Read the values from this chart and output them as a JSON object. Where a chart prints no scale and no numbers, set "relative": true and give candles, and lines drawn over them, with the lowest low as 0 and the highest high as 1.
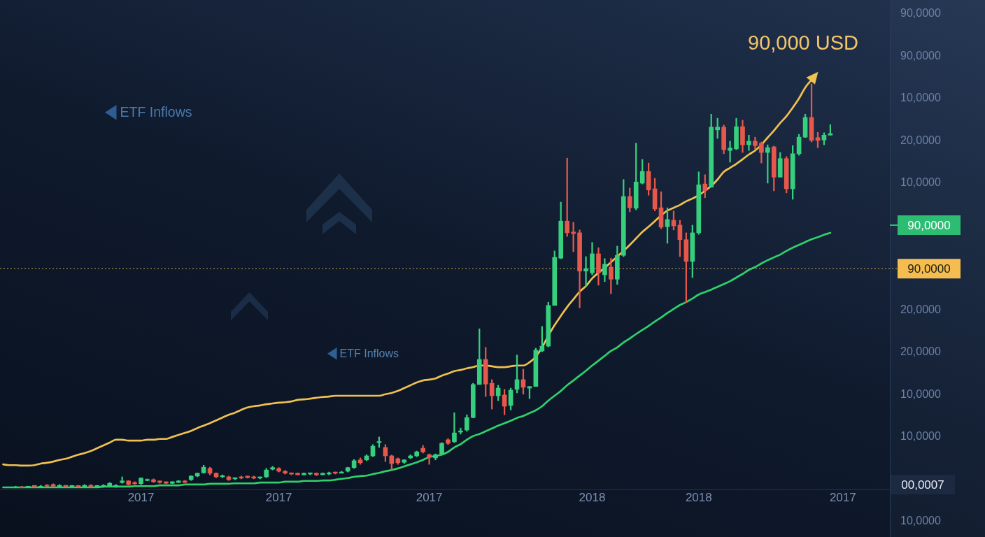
{
  "chart_data": {
    "type": "candlestick",
    "relative": true,
    "legend": false,
    "marker": "none",
    "categories": [
      null,
      null,
      null,
      null,
      null,
      null,
      null,
      null,
      null,
      null,
      null,
      null,
      null,
      null,
      null,
      null,
      null,
      null,
      null,
      null,
      null,
      null,
      "2017",
      null,
      null,
      null,
      null,
      null,
      null,
      null,
      null,
      null,
      null,
      null,
      null,
      null,
      null,
      null,
      null,
      null,
      null,
      null,
      null,
      null,
      "2017",
      null,
      null,
      null,
      null,
      null,
      null,
      null,
      null,
      null,
      null,
      null,
      null,
      null,
      null,
      null,
      null,
      null,
      null,
      null,
      null,
      null,
      null,
      null,
      "2017",
      null,
      null,
      null,
      null,
      null,
      null,
      null,
      null,
      null,
      null,
      null,
      null,
      null,
      null,
      null,
      null,
      null,
      null,
      null,
      null,
      null,
      null,
      null,
      null,
      null,
      "2018",
      null,
      null,
      null,
      null,
      null,
      null,
      null,
      null,
      null,
      null,
      null,
      null,
      null,
      null,
      null,
      null,
      "2018",
      null,
      null,
      null,
      null,
      null,
      null,
      null,
      null,
      null,
      null,
      null,
      null,
      null,
      null,
      null,
      null,
      null,
      null,
      null,
      null,
      null,
      null,
      "2017",
      null,
      null,
      null,
      null,
      null,
      null,
      null
    ],
    "ohlc": [
      null,
      null,
      [
        0,
        0.003,
        0,
        0.002
      ],
      [
        0.002,
        0.003,
        0,
        0
      ],
      [
        0,
        0.003,
        0,
        0.003
      ],
      [
        0.003,
        0.005,
        0,
        0.002
      ],
      [
        0,
        0.005,
        0,
        0.003
      ],
      [
        0.005,
        0.007,
        0.002,
        0.003
      ],
      [
        0.007,
        0.009,
        0.002,
        0.003
      ],
      [
        0.002,
        0.007,
        0,
        0.005
      ],
      [
        0.005,
        0.005,
        0,
        0.002
      ],
      [
        0.002,
        0.005,
        0,
        0.003
      ],
      [
        0.003,
        0.005,
        0,
        0.002
      ],
      [
        0.002,
        0.007,
        0,
        0.005
      ],
      [
        0.005,
        0.007,
        0,
        0.002
      ],
      [
        0.002,
        0.005,
        0,
        0.003
      ],
      [
        0.002,
        0.007,
        0,
        0.005
      ],
      [
        0.003,
        0.012,
        0.002,
        0.01
      ],
      [
        0.002,
        0.007,
        0,
        0.005
      ],
      [
        0.012,
        0.026,
        0.01,
        0.016
      ],
      [
        0.016,
        0.017,
        0.005,
        0.007
      ],
      [
        0.012,
        0.014,
        0.007,
        0.009
      ],
      [
        0.009,
        0.024,
        0.007,
        0.023
      ],
      [
        0.017,
        0.021,
        0.016,
        0.019
      ],
      [
        0.019,
        0.021,
        0.012,
        0.014
      ],
      [
        0.016,
        0.016,
        0.01,
        0.012
      ],
      [
        0.014,
        0.014,
        0.009,
        0.01
      ],
      [
        0.01,
        0.014,
        0.009,
        0.014
      ],
      [
        0.012,
        0.017,
        0.012,
        0.016
      ],
      [
        0.016,
        0.017,
        0.012,
        0.012
      ],
      [
        0.019,
        0.029,
        0.017,
        0.028
      ],
      [
        0.028,
        0.036,
        0.026,
        0.035
      ],
      [
        0.036,
        0.055,
        0.035,
        0.05
      ],
      [
        0.047,
        0.05,
        0.031,
        0.035
      ],
      [
        0.035,
        0.036,
        0.024,
        0.026
      ],
      [
        0.026,
        0.031,
        0.024,
        0.029
      ],
      [
        0.026,
        0.028,
        0.017,
        0.019
      ],
      [
        0.021,
        0.024,
        0.019,
        0.024
      ],
      [
        0.026,
        0.028,
        0.021,
        0.023
      ],
      [
        0.028,
        0.028,
        0.023,
        0.024
      ],
      [
        0.026,
        0.028,
        0.021,
        0.023
      ],
      [
        0.023,
        0.026,
        0.021,
        0.026
      ],
      [
        0.026,
        0.047,
        0.024,
        0.043
      ],
      [
        0.045,
        0.052,
        0.043,
        0.049
      ],
      [
        0.047,
        0.049,
        0.038,
        0.04
      ],
      [
        0.04,
        0.042,
        0.033,
        0.035
      ],
      [
        0.036,
        0.036,
        0.031,
        0.033
      ],
      [
        0.035,
        0.036,
        0.031,
        0.031
      ],
      [
        0.031,
        0.036,
        0.031,
        0.035
      ],
      [
        0.033,
        0.036,
        0.031,
        0.036
      ],
      [
        0.035,
        0.036,
        0.029,
        0.031
      ],
      [
        0.031,
        0.036,
        0.031,
        0.035
      ],
      [
        0.033,
        0.038,
        0.031,
        0.036
      ],
      [
        0.038,
        0.038,
        0.033,
        0.035
      ],
      [
        0.035,
        0.04,
        0.035,
        0.038
      ],
      [
        0.04,
        0.05,
        0.038,
        0.049
      ],
      [
        0.049,
        0.069,
        0.047,
        0.066
      ],
      [
        0.068,
        0.073,
        0.057,
        0.061
      ],
      [
        0.068,
        0.081,
        0.066,
        0.078
      ],
      [
        0.078,
        0.106,
        0.076,
        0.102
      ],
      [
        0.111,
        0.125,
        0.099,
        0.113
      ],
      [
        0.099,
        0.106,
        0.064,
        0.078
      ],
      [
        0.078,
        0.08,
        0.043,
        0.059
      ],
      [
        0.071,
        0.073,
        0.057,
        0.061
      ],
      [
        0.062,
        0.069,
        0.059,
        0.068
      ],
      [
        0.073,
        0.081,
        0.071,
        0.078
      ],
      [
        0.078,
        0.09,
        0.076,
        0.088
      ],
      [
        0.097,
        0.104,
        0.085,
        0.088
      ],
      [
        0.081,
        0.083,
        0.057,
        0.075
      ],
      [
        0.073,
        0.083,
        0.068,
        0.081
      ],
      [
        0.083,
        0.111,
        0.081,
        0.109
      ],
      [
        0.118,
        0.121,
        0.106,
        0.109
      ],
      [
        0.113,
        0.185,
        0.111,
        0.135
      ],
      [
        0.137,
        0.147,
        0.132,
        0.14
      ],
      [
        0.142,
        0.18,
        0.139,
        0.173
      ],
      [
        0.173,
        0.258,
        0.172,
        0.255
      ],
      [
        0.255,
        0.393,
        0.255,
        0.317
      ],
      [
        0.317,
        0.347,
        0.225,
        0.256
      ],
      [
        0.258,
        0.267,
        0.194,
        0.227
      ],
      [
        0.227,
        0.253,
        0.215,
        0.246
      ],
      [
        0.229,
        0.243,
        0.18,
        0.201
      ],
      [
        0.203,
        0.246,
        0.192,
        0.241
      ],
      [
        0.243,
        0.328,
        0.234,
        0.267
      ],
      [
        0.267,
        0.293,
        0.231,
        0.248
      ],
      [
        0.246,
        0.25,
        0.22,
        0.25
      ],
      [
        0.25,
        0.345,
        0.25,
        0.34
      ],
      [
        0.338,
        0.399,
        0.336,
        0.35
      ],
      [
        0.35,
        0.459,
        0.348,
        0.451
      ],
      [
        0.451,
        0.586,
        0.451,
        0.57
      ],
      [
        0.568,
        0.707,
        0.567,
        0.66
      ],
      [
        0.66,
        0.816,
        0.622,
        0.631
      ],
      [
        0.633,
        0.657,
        0.584,
        0.629
      ],
      [
        0.631,
        0.638,
        0.445,
        0.536
      ],
      [
        0.536,
        0.572,
        0.497,
        0.542
      ],
      [
        0.532,
        0.607,
        0.527,
        0.579
      ],
      [
        0.579,
        0.594,
        0.501,
        0.532
      ],
      [
        0.527,
        0.567,
        0.51,
        0.553
      ],
      [
        0.546,
        0.568,
        0.48,
        0.516
      ],
      [
        0.516,
        0.598,
        0.503,
        0.575
      ],
      [
        0.575,
        0.763,
        0.572,
        0.721
      ],
      [
        0.721,
        0.742,
        0.683,
        0.693
      ],
      [
        0.692,
        0.853,
        0.688,
        0.757
      ],
      [
        0.754,
        0.813,
        0.752,
        0.783
      ],
      [
        0.783,
        0.804,
        0.724,
        0.737
      ],
      [
        0.74,
        0.766,
        0.685,
        0.69
      ],
      [
        0.693,
        0.733,
        0.641,
        0.645
      ],
      [
        0.646,
        0.693,
        0.605,
        0.664
      ],
      [
        0.662,
        0.685,
        0.638,
        0.648
      ],
      [
        0.65,
        0.662,
        0.572,
        0.614
      ],
      [
        0.614,
        0.631,
        0.458,
        0.56
      ],
      [
        0.56,
        0.65,
        0.52,
        0.631
      ],
      [
        0.631,
        0.782,
        0.627,
        0.75
      ],
      [
        0.752,
        0.775,
        0.718,
        0.735
      ],
      [
        0.744,
        0.925,
        0.744,
        0.893
      ],
      [
        0.886,
        0.915,
        0.865,
        0.893
      ],
      [
        0.893,
        0.898,
        0.827,
        0.837
      ],
      [
        0.835,
        0.858,
        0.806,
        0.841
      ],
      [
        0.839,
        0.915,
        0.837,
        0.894
      ],
      [
        0.894,
        0.91,
        0.83,
        0.849
      ],
      [
        0.849,
        0.873,
        0.835,
        0.858
      ],
      [
        0.858,
        0.868,
        0.839,
        0.847
      ],
      [
        0.853,
        0.856,
        0.804,
        0.83
      ],
      [
        0.83,
        0.849,
        0.754,
        0.842
      ],
      [
        0.844,
        0.846,
        0.735,
        0.769
      ],
      [
        0.769,
        0.83,
        0.769,
        0.815
      ],
      [
        0.815,
        0.82,
        0.73,
        0.74
      ],
      [
        0.74,
        0.847,
        0.714,
        0.827
      ],
      [
        0.827,
        0.875,
        0.823,
        0.868
      ],
      [
        0.868,
        0.925,
        0.867,
        0.917
      ],
      [
        0.917,
        1,
        0.856,
        0.86
      ],
      [
        0.867,
        0.88,
        0.842,
        0.86
      ],
      [
        0.861,
        0.879,
        0.849,
        0.873
      ],
      [
        0.873,
        0.899,
        0.873,
        0.877
      ],
      null,
      null,
      null,
      null,
      null,
      null,
      null,
      null,
      null
    ],
    "colors": [
      null,
      null,
      "#36cf7e",
      "#e5584b",
      "#36cf7e",
      "#e5584b",
      "#36cf7e",
      "#e5584b",
      "#e5584b",
      "#36cf7e",
      "#e5584b",
      "#36cf7e",
      "#e5584b",
      "#36cf7e",
      "#e5584b",
      "#36cf7e",
      "#36cf7e",
      "#36cf7e",
      "#36cf7e",
      "#36cf7e",
      "#e5584b",
      "#e5584b",
      "#36cf7e",
      "#36cf7e",
      "#e5584b",
      "#e5584b",
      "#e5584b",
      "#36cf7e",
      "#36cf7e",
      "#e5584b",
      "#36cf7e",
      "#36cf7e",
      "#36cf7e",
      "#e5584b",
      "#e5584b",
      "#36cf7e",
      "#e5584b",
      "#36cf7e",
      "#e5584b",
      "#e5584b",
      "#e5584b",
      "#36cf7e",
      "#36cf7e",
      "#36cf7e",
      "#e5584b",
      "#e5584b",
      "#e5584b",
      "#e5584b",
      "#36cf7e",
      "#36cf7e",
      "#e5584b",
      "#36cf7e",
      "#36cf7e",
      "#e5584b",
      "#36cf7e",
      "#36cf7e",
      "#36cf7e",
      "#e5584b",
      "#36cf7e",
      "#36cf7e",
      "#36cf7e",
      "#e5584b",
      "#e5584b",
      "#e5584b",
      "#36cf7e",
      "#36cf7e",
      "#36cf7e",
      "#e5584b",
      "#e5584b",
      "#36cf7e",
      "#36cf7e",
      "#e5584b",
      "#36cf7e",
      "#36cf7e",
      "#36cf7e",
      "#36cf7e",
      "#36cf7e",
      "#e5584b",
      "#e5584b",
      "#36cf7e",
      "#e5584b",
      "#36cf7e",
      "#36cf7e",
      "#e5584b",
      "#36cf7e",
      "#36cf7e",
      "#36cf7e",
      "#36cf7e",
      "#36cf7e",
      "#36cf7e",
      "#e5584b",
      "#e5584b",
      "#e5584b",
      "#36cf7e",
      "#36cf7e",
      "#e5584b",
      "#36cf7e",
      "#e5584b",
      "#36cf7e",
      "#36cf7e",
      "#e5584b",
      "#36cf7e",
      "#36cf7e",
      "#e5584b",
      "#e5584b",
      "#e5584b",
      "#36cf7e",
      "#e5584b",
      "#e5584b",
      "#e5584b",
      "#36cf7e",
      "#36cf7e",
      "#e5584b",
      "#36cf7e",
      "#36cf7e",
      "#e5584b",
      "#36cf7e",
      "#36cf7e",
      "#e5584b",
      "#36cf7e",
      "#e5584b",
      "#e5584b",
      "#36cf7e",
      "#e5584b",
      "#36cf7e",
      "#e5584b",
      "#36cf7e",
      "#36cf7e",
      "#36cf7e",
      "#e5584b",
      "#e5584b",
      "#36cf7e",
      "#36cf7e",
      null,
      null,
      null,
      null,
      null,
      null,
      null,
      null,
      null
    ],
    "series": [
      {
        "type": "line",
        "color": "#f0c050",
        "values": [
          0.057,
          0.055,
          0.055,
          0.054,
          0.054,
          0.055,
          0.059,
          0.061,
          0.064,
          0.068,
          0.071,
          0.076,
          0.081,
          0.085,
          0.09,
          0.097,
          0.104,
          0.111,
          0.118,
          0.118,
          0.116,
          0.116,
          0.116,
          0.118,
          0.118,
          0.12,
          0.12,
          0.125,
          0.13,
          0.135,
          0.14,
          0.147,
          0.153,
          0.159,
          0.166,
          0.173,
          0.18,
          0.185,
          0.192,
          0.198,
          0.201,
          0.203,
          0.206,
          0.208,
          0.21,
          0.211,
          0.213,
          0.217,
          0.218,
          0.22,
          0.222,
          0.224,
          0.225,
          0.227,
          0.227,
          0.227,
          0.227,
          0.227,
          0.227,
          0.227,
          0.227,
          0.231,
          0.234,
          0.239,
          0.246,
          0.253,
          0.26,
          0.265,
          0.267,
          0.27,
          0.277,
          0.282,
          0.288,
          0.291,
          0.295,
          0.298,
          0.302,
          0.302,
          0.3,
          0.298,
          0.298,
          0.3,
          0.302,
          0.302,
          0.31,
          0.324,
          0.347,
          0.376,
          0.402,
          0.425,
          0.447,
          0.466,
          0.485,
          0.499,
          0.518,
          0.532,
          0.544,
          0.558,
          0.572,
          0.586,
          0.601,
          0.617,
          0.633,
          0.646,
          0.66,
          0.674,
          0.686,
          0.693,
          0.7,
          0.709,
          0.716,
          0.724,
          0.735,
          0.747,
          0.763,
          0.782,
          0.792,
          0.802,
          0.813,
          0.825,
          0.835,
          0.849,
          0.867,
          0.884,
          0.903,
          0.92,
          0.941,
          0.964,
          0.991,
          1.01,
          null,
          null,
          null,
          null,
          null,
          null,
          null,
          null,
          null,
          null,
          null,
          null
        ]
      },
      {
        "type": "line",
        "color": "#2fd06b",
        "values": [
          0,
          0,
          0,
          0,
          0,
          0,
          0,
          0,
          0,
          0,
          0,
          0,
          0,
          0,
          0,
          0,
          0.002,
          0.002,
          0.002,
          0.002,
          0.002,
          0.003,
          0.003,
          0.003,
          0.003,
          0.005,
          0.005,
          0.005,
          0.005,
          0.007,
          0.007,
          0.007,
          0.007,
          0.009,
          0.009,
          0.009,
          0.009,
          0.01,
          0.01,
          0.01,
          0.01,
          0.012,
          0.012,
          0.012,
          0.012,
          0.014,
          0.014,
          0.014,
          0.016,
          0.016,
          0.016,
          0.017,
          0.017,
          0.019,
          0.021,
          0.023,
          0.026,
          0.028,
          0.029,
          0.033,
          0.036,
          0.04,
          0.043,
          0.047,
          0.052,
          0.057,
          0.062,
          0.068,
          0.075,
          0.078,
          0.081,
          0.088,
          0.099,
          0.107,
          0.118,
          0.127,
          0.132,
          0.139,
          0.146,
          0.153,
          0.159,
          0.165,
          0.172,
          0.177,
          0.184,
          0.191,
          0.201,
          0.215,
          0.227,
          0.239,
          0.253,
          0.265,
          0.277,
          0.289,
          0.302,
          0.314,
          0.326,
          0.338,
          0.347,
          0.359,
          0.369,
          0.38,
          0.39,
          0.4,
          0.411,
          0.421,
          0.432,
          0.442,
          0.452,
          0.459,
          0.468,
          0.478,
          0.484,
          0.49,
          0.497,
          0.504,
          0.511,
          0.52,
          0.529,
          0.539,
          0.546,
          0.555,
          0.563,
          0.57,
          0.577,
          0.586,
          0.594,
          0.601,
          0.608,
          0.615,
          0.62,
          0.626,
          0.631,
          null,
          null,
          null,
          null,
          null,
          null,
          null,
          null,
          null
        ]
      }
    ],
    "ref_lines": [
      {
        "axis": "y",
        "value": 0.542,
        "label": "90,0000",
        "color": "#f5bd4f",
        "line_style": "dotted"
      }
    ],
    "annotations": [
      "ETF Inflows",
      "ETF Inflows",
      "90,000 USD",
      "90,0000",
      "00,0007",
      "90,0000",
      "90,0000",
      "10,0000",
      "20,0000",
      "10,0000",
      "20,0000",
      "20,0000",
      "10,0000",
      "10,0000",
      "10,0000"
    ]
  }
}
